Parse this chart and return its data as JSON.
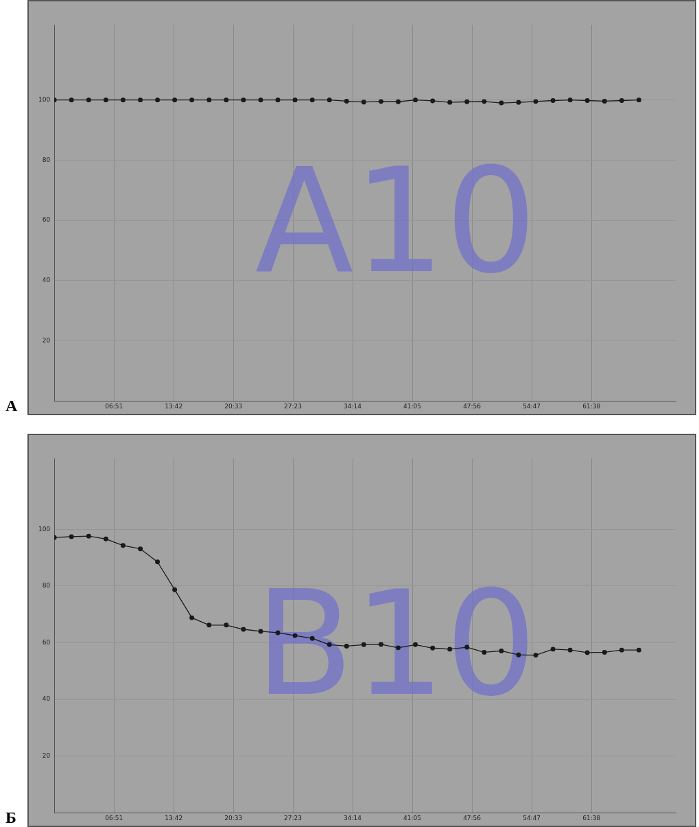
{
  "chart_data": [
    {
      "type": "line",
      "title": "А",
      "annotations": [
        "A10"
      ],
      "color": "#1a1a1a",
      "marker": "circle",
      "grid": true,
      "x": [
        0,
        1.97,
        3.95,
        5.92,
        7.89,
        9.87,
        11.84,
        13.81,
        15.78,
        17.76,
        19.73,
        21.7,
        23.68,
        25.65,
        27.62,
        29.6,
        31.57,
        33.54,
        35.51,
        37.49,
        39.46,
        41.43,
        43.41,
        45.38,
        47.35,
        49.33,
        51.3,
        53.27,
        55.24,
        57.22,
        59.19,
        61.16,
        63.14,
        65.11,
        67.08
      ],
      "values": [
        100,
        100,
        100,
        100,
        100,
        100,
        100,
        100,
        100,
        100,
        100,
        100,
        100,
        100,
        100,
        100,
        100,
        99.6,
        99.3,
        99.5,
        99.4,
        100,
        99.7,
        99.2,
        99.4,
        99.5,
        99,
        99.2,
        99.5,
        99.8,
        100,
        99.8,
        99.6,
        99.8,
        100
      ],
      "xlim": [
        0,
        71.3
      ],
      "xticks": [
        {
          "value": 6.85,
          "label": "06:51"
        },
        {
          "value": 13.7,
          "label": "13:42"
        },
        {
          "value": 20.55,
          "label": "20:33"
        },
        {
          "value": 27.38,
          "label": "27:23"
        },
        {
          "value": 34.23,
          "label": "34:14"
        },
        {
          "value": 41.08,
          "label": "41:05"
        },
        {
          "value": 47.93,
          "label": "47:56"
        },
        {
          "value": 54.78,
          "label": "54:47"
        },
        {
          "value": 61.63,
          "label": "61:38"
        }
      ],
      "ylim": [
        0,
        125
      ],
      "yticks": [
        20,
        40,
        60,
        80,
        100
      ]
    },
    {
      "type": "line",
      "title": "Б",
      "annotations": [
        "B10"
      ],
      "color": "#1a1a1a",
      "marker": "circle",
      "grid": true,
      "x": [
        0,
        1.97,
        3.95,
        5.92,
        7.89,
        9.87,
        11.84,
        13.81,
        15.78,
        17.76,
        19.73,
        21.7,
        23.68,
        25.65,
        27.62,
        29.6,
        31.57,
        33.54,
        35.51,
        37.49,
        39.46,
        41.43,
        43.41,
        45.38,
        47.35,
        49.33,
        51.3,
        53.27,
        55.24,
        57.22,
        59.19,
        61.16,
        63.14,
        65.11,
        67.08
      ],
      "values": [
        97.1,
        97.4,
        97.6,
        96.6,
        94.3,
        93.1,
        88.5,
        78.7,
        68.8,
        66.2,
        66.2,
        64.7,
        64,
        63.5,
        62.5,
        61.5,
        59.3,
        58.8,
        59.3,
        59.4,
        58.2,
        59.3,
        58.1,
        57.7,
        58.4,
        56.6,
        57.1,
        55.7,
        55.6,
        57.7,
        57.4,
        56.5,
        56.6,
        57.4,
        57.4
      ],
      "xlim": [
        0,
        71.3
      ],
      "xticks": [
        {
          "value": 6.85,
          "label": "06:51"
        },
        {
          "value": 13.7,
          "label": "13:42"
        },
        {
          "value": 20.55,
          "label": "20:33"
        },
        {
          "value": 27.38,
          "label": "27:23"
        },
        {
          "value": 34.23,
          "label": "34:14"
        },
        {
          "value": 41.08,
          "label": "41:05"
        },
        {
          "value": 47.93,
          "label": "47:56"
        },
        {
          "value": 54.78,
          "label": "54:47"
        },
        {
          "value": 61.63,
          "label": "61:38"
        }
      ],
      "ylim": [
        0,
        125
      ],
      "yticks": [
        20,
        40,
        60,
        80,
        100
      ]
    }
  ]
}
